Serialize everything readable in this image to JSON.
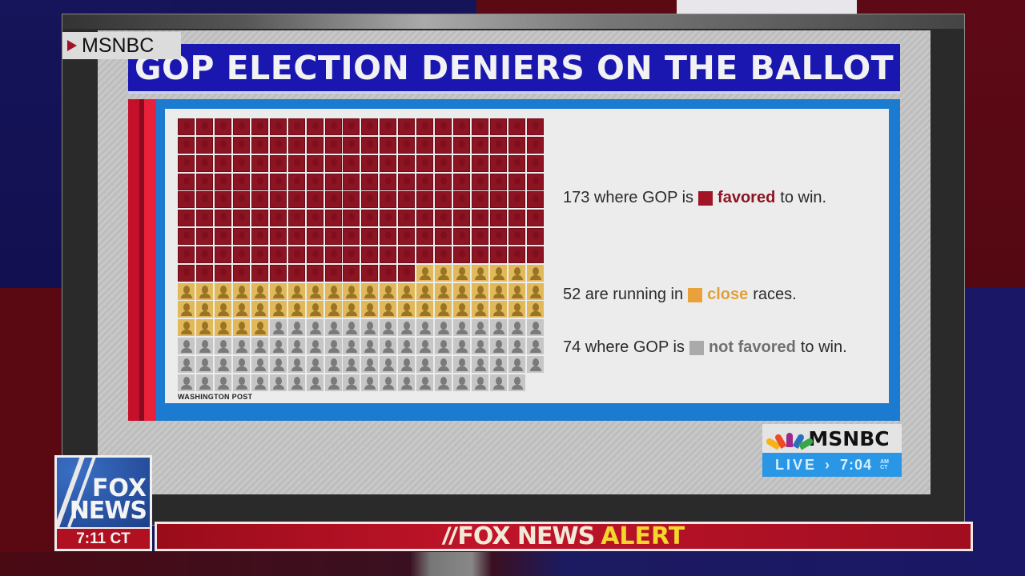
{
  "broadcast": {
    "network_bug": "MSNBC",
    "title": "GOP ELECTION DENIERS ON THE BALLOT",
    "source": "WASHINGTON POST",
    "msnbc_logo": "MSNBC",
    "live_label": "LIVE",
    "live_arrow": "›",
    "live_time": "7:04",
    "live_ampm": "AM",
    "live_tz": "CT",
    "fox_logo_line1": "FOX",
    "fox_logo_line2": "NEWS",
    "fox_time": "7:11 CT",
    "alert_part1": "FOX NEWS",
    "alert_part2": "ALERT"
  },
  "legend": [
    {
      "pre": "173 where GOP is",
      "keyword": "favored",
      "post": "to win.",
      "color": "#a01628",
      "text_color": "#8e1423"
    },
    {
      "pre": "52 are running in",
      "keyword": "close",
      "post": "races.",
      "color": "#e9a23a",
      "text_color": "#e0a03c"
    },
    {
      "pre": "74 where GOP is",
      "keyword": "not favored",
      "post": "to win.",
      "color": "#aaaaaa",
      "text_color": "#707070"
    }
  ],
  "chart_data": {
    "type": "waffle",
    "title": "GOP ELECTION DENIERS ON THE BALLOT",
    "categories": [
      "favored",
      "close",
      "not favored"
    ],
    "values": [
      173,
      52,
      74
    ],
    "total": 299,
    "colors": [
      "#8e1423",
      "#e2b95a",
      "#c6c6c6"
    ],
    "columns": 20,
    "rows": 15,
    "legend_position": "right",
    "source": "WASHINGTON POST",
    "annotations": [
      "173 where GOP is favored to win.",
      "52 are running in close races.",
      "74 where GOP is not favored to win."
    ]
  }
}
